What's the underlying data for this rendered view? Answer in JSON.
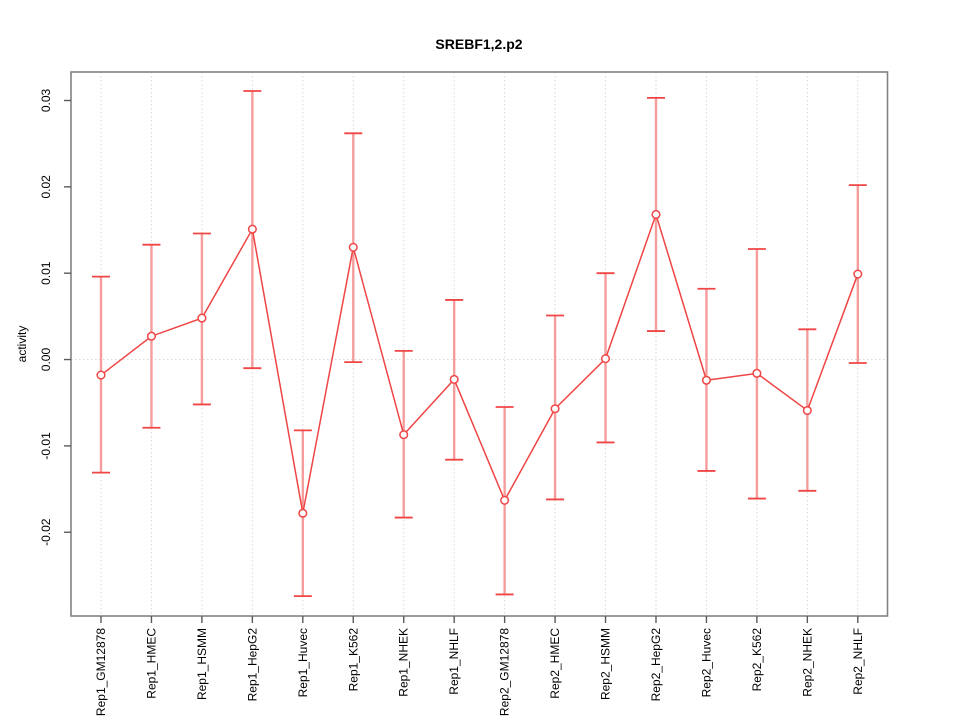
{
  "chart_data": {
    "type": "scatter",
    "title": "SREBF1,2.p2",
    "xlabel": "",
    "ylabel": "activity",
    "categories": [
      "Rep1_GM12878",
      "Rep1_HMEC",
      "Rep1_HSMM",
      "Rep1_HepG2",
      "Rep1_Huvec",
      "Rep1_K562",
      "Rep1_NHEK",
      "Rep1_NHLF",
      "Rep2_GM12878",
      "Rep2_HMEC",
      "Rep2_HSMM",
      "Rep2_HepG2",
      "Rep2_Huvec",
      "Rep2_K562",
      "Rep2_NHEK",
      "Rep2_NHLF"
    ],
    "series": [
      {
        "name": "activity",
        "values": [
          -0.0018,
          0.0027,
          0.0048,
          0.0151,
          -0.0178,
          0.013,
          -0.0087,
          -0.0023,
          -0.0163,
          -0.0057,
          0.0001,
          0.0168,
          -0.0024,
          -0.0016,
          -0.0059,
          0.0099
        ],
        "err_high": [
          0.0096,
          0.0133,
          0.0146,
          0.0311,
          -0.0082,
          0.0262,
          0.001,
          0.0069,
          -0.0055,
          0.0051,
          0.01,
          0.0303,
          0.0082,
          0.0128,
          0.0035,
          0.0202
        ],
        "err_low": [
          -0.0131,
          -0.0079,
          -0.0052,
          -0.001,
          -0.0274,
          -0.0003,
          -0.0183,
          -0.0116,
          -0.0272,
          -0.0162,
          -0.0096,
          0.0033,
          -0.0129,
          -0.0161,
          -0.0152,
          -0.0004
        ]
      }
    ],
    "ylim": [
      -0.0297,
      0.0333
    ],
    "ytick_values": [
      0.03,
      0.02,
      0.01,
      0,
      -0.01,
      -0.02
    ],
    "ytick_labels": [
      "0.03",
      "0.02",
      "0.01",
      "0.00",
      "-0.01",
      "-0.02"
    ],
    "grid": "vertical-dotted-per-category, horizontal-dotted-at-zero",
    "legend_position": "none",
    "colors": {
      "line": "#ef4545",
      "point": "#ef4545",
      "error_stem": "#f59d9d",
      "error_cap": "#ef4545",
      "grid": "#d9d9d9",
      "box": "#828282",
      "tick": "#5a5a5a",
      "text": "#000000",
      "background": "#ffffff"
    }
  }
}
